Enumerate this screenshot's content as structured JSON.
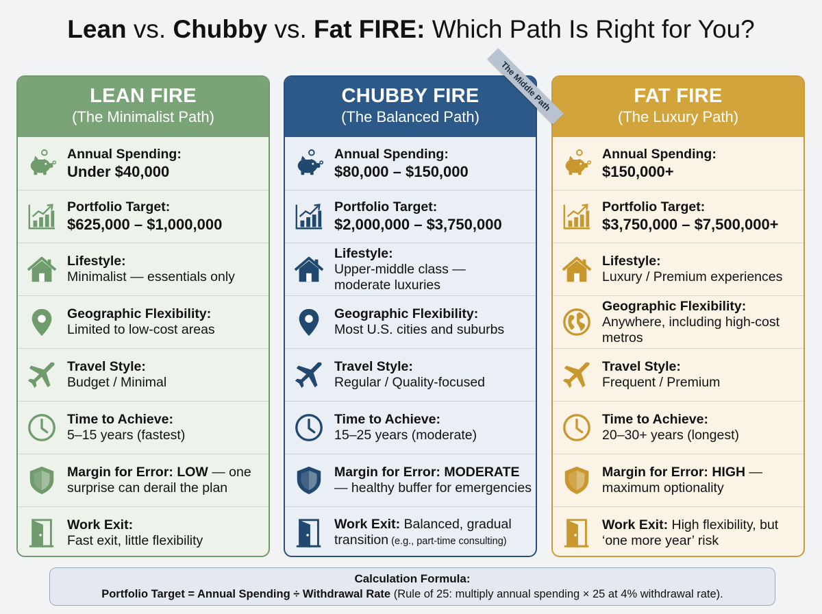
{
  "title": {
    "lean": "Lean",
    "vs1": "vs.",
    "chubby": "Chubby",
    "vs2": "vs.",
    "fat": "Fat FIRE:",
    "tail": "Which Path Is Right for You?"
  },
  "ribbon": "The Middle Path",
  "columns": {
    "lean": {
      "name": "LEAN FIRE",
      "subtitle": "(The Minimalist Path)",
      "accent": "#7aa378",
      "spending_label": "Annual Spending:",
      "spending_value": "Under $40,000",
      "portfolio_label": "Portfolio Target:",
      "portfolio_value": "$625,000 – $1,000,000",
      "lifestyle_label": "Lifestyle:",
      "lifestyle_value": "Minimalist — essentials only",
      "geo_label": "Geographic Flexibility:",
      "geo_value": "Limited to low-cost areas",
      "travel_label": "Travel Style:",
      "travel_value": "Budget / Minimal",
      "time_label": "Time to Achieve:",
      "time_value": "5–15 years (fastest)",
      "margin_label": "Margin for Error: LOW",
      "margin_value": " — one surprise can derail the plan",
      "work_label": "Work Exit:",
      "work_value": "Fast exit, little flexibility"
    },
    "chubby": {
      "name": "CHUBBY FIRE",
      "subtitle": "(The Balanced Path)",
      "accent": "#2c5988",
      "spending_label": "Annual Spending:",
      "spending_value": "$80,000 – $150,000",
      "portfolio_label": "Portfolio Target:",
      "portfolio_value": "$2,000,000 – $3,750,000",
      "lifestyle_label": "Lifestyle:",
      "lifestyle_value": "Upper-middle class — moderate luxuries",
      "geo_label": "Geographic Flexibility:",
      "geo_value": "Most U.S. cities and suburbs",
      "travel_label": "Travel Style:",
      "travel_value": "Regular / Quality-focused",
      "time_label": "Time to Achieve:",
      "time_value": "15–25 years (moderate)",
      "margin_label": "Margin for Error: MODERATE",
      "margin_value": " — healthy buffer for emergencies",
      "work_label": "Work Exit:",
      "work_value": " Balanced, gradual transition",
      "work_note": " (e.g., part-time consulting)"
    },
    "fat": {
      "name": "FAT FIRE",
      "subtitle": "(The Luxury Path)",
      "accent": "#d2a43c",
      "spending_label": "Annual Spending:",
      "spending_value": "$150,000+",
      "portfolio_label": "Portfolio Target:",
      "portfolio_value": "$3,750,000 – $7,500,000+",
      "lifestyle_label": "Lifestyle:",
      "lifestyle_value": "Luxury / Premium experiences",
      "geo_label": "Geographic Flexibility:",
      "geo_value": "Anywhere, including high-cost metros",
      "travel_label": "Travel Style:",
      "travel_value": "Frequent / Premium",
      "time_label": "Time to Achieve:",
      "time_value": "20–30+ years (longest)",
      "margin_label": "Margin for Error: HIGH",
      "margin_value": " — maximum optionality",
      "work_label": "Work Exit:",
      "work_value": " High flexibility, but ‘one more year’ risk"
    }
  },
  "icons": [
    "piggy-bank-icon",
    "bar-chart-icon",
    "house-icon",
    "location-pin-icon",
    "globe-icon",
    "airplane-icon",
    "clock-icon",
    "shield-icon",
    "door-icon"
  ],
  "formula": {
    "title": "Calculation Formula:",
    "lead": "Portfolio Target = Annual Spending ÷ Withdrawal Rate",
    "rest": " (Rule of 25: multiply annual spending × 25 at 4% withdrawal rate)."
  }
}
